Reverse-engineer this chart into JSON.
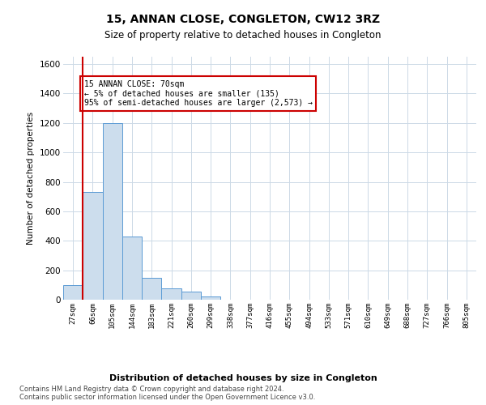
{
  "title": "15, ANNAN CLOSE, CONGLETON, CW12 3RZ",
  "subtitle": "Size of property relative to detached houses in Congleton",
  "xlabel": "Distribution of detached houses by size in Congleton",
  "ylabel": "Number of detached properties",
  "bin_labels": [
    "27sqm",
    "66sqm",
    "105sqm",
    "144sqm",
    "183sqm",
    "221sqm",
    "260sqm",
    "299sqm",
    "338sqm",
    "377sqm",
    "416sqm",
    "455sqm",
    "494sqm",
    "533sqm",
    "571sqm",
    "610sqm",
    "649sqm",
    "688sqm",
    "727sqm",
    "766sqm",
    "805sqm"
  ],
  "bar_heights": [
    100,
    730,
    1200,
    430,
    150,
    75,
    55,
    20,
    0,
    0,
    0,
    0,
    0,
    0,
    0,
    0,
    0,
    0,
    0,
    0,
    0
  ],
  "bar_color": "#ccdded",
  "bar_edge_color": "#5b9bd5",
  "property_line_color": "#cc0000",
  "property_line_x": 0.5,
  "annotation_text": "15 ANNAN CLOSE: 70sqm\n← 5% of detached houses are smaller (135)\n95% of semi-detached houses are larger (2,573) →",
  "annotation_box_facecolor": "#ffffff",
  "annotation_box_edgecolor": "#cc0000",
  "ylim": [
    0,
    1650
  ],
  "yticks": [
    0,
    200,
    400,
    600,
    800,
    1000,
    1200,
    1400,
    1600
  ],
  "footer_line1": "Contains HM Land Registry data © Crown copyright and database right 2024.",
  "footer_line2": "Contains public sector information licensed under the Open Government Licence v3.0.",
  "background_color": "#ffffff",
  "grid_color": "#ccd9e6",
  "fig_width": 6.0,
  "fig_height": 5.0,
  "dpi": 100
}
